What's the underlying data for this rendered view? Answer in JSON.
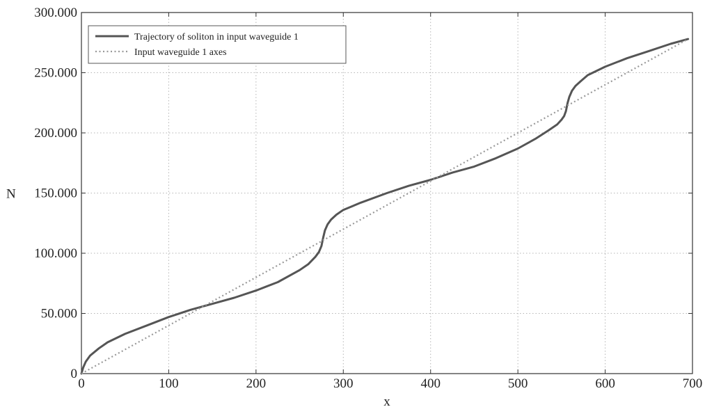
{
  "chart_data": {
    "type": "line",
    "title": "",
    "xlabel": "x",
    "ylabel": "N",
    "xlim": [
      0,
      700
    ],
    "ylim": [
      0,
      300000
    ],
    "grid": true,
    "legend_position": "top-left",
    "x_ticks": [
      0,
      100,
      200,
      300,
      400,
      500,
      600,
      700
    ],
    "x_tick_labels": [
      "0",
      "100",
      "200",
      "300",
      "400",
      "500",
      "600",
      "700"
    ],
    "y_ticks": [
      0,
      50000,
      100000,
      150000,
      200000,
      250000,
      300000
    ],
    "y_tick_labels": [
      "0",
      "50.000",
      "100.000",
      "150.000",
      "200.000",
      "250.000",
      "300.000"
    ],
    "series": [
      {
        "name": "Trajectory of soliton in input waveguide 1",
        "style": "solid",
        "color": "#555555",
        "x": [
          0,
          2,
          5,
          10,
          20,
          30,
          50,
          75,
          100,
          125,
          150,
          175,
          200,
          225,
          250,
          260,
          268,
          272,
          275,
          277,
          279,
          282,
          286,
          292,
          300,
          320,
          350,
          375,
          400,
          425,
          450,
          475,
          500,
          520,
          535,
          545,
          550,
          553,
          555,
          557,
          559,
          562,
          566,
          572,
          580,
          600,
          625,
          650,
          675,
          695
        ],
        "y": [
          0,
          5000,
          10000,
          15000,
          21000,
          26000,
          33000,
          40000,
          47000,
          53000,
          58000,
          63000,
          69000,
          76000,
          86000,
          91000,
          97000,
          101000,
          106000,
          113000,
          119000,
          124000,
          128000,
          132000,
          136000,
          142000,
          150000,
          156000,
          161000,
          167000,
          172000,
          179000,
          187000,
          195000,
          202000,
          207000,
          211000,
          214000,
          218000,
          225000,
          230000,
          235000,
          239000,
          243000,
          248000,
          255000,
          262000,
          268000,
          274000,
          278000
        ]
      },
      {
        "name": "Input waveguide 1 axes",
        "style": "dotted",
        "color": "#999999",
        "x": [
          0,
          695
        ],
        "y": [
          0,
          278000
        ]
      }
    ]
  }
}
